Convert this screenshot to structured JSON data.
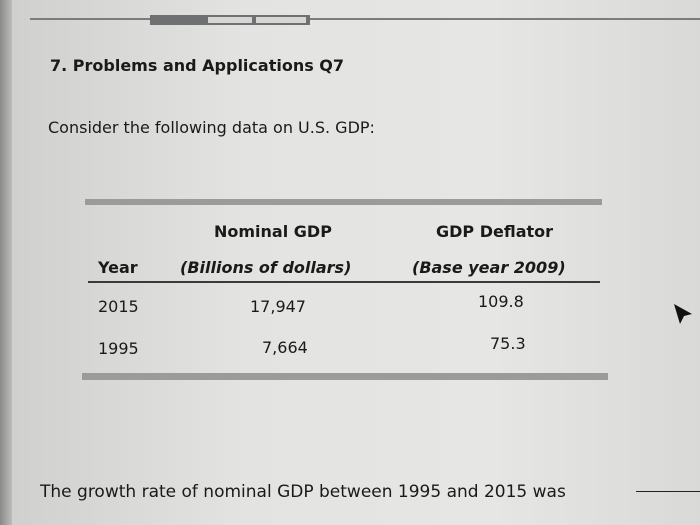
{
  "problem": {
    "title": "7. Problems and Applications Q7",
    "intro": "Consider the following data on U.S. GDP:"
  },
  "table": {
    "headers": {
      "year": "Year",
      "nominal_line1": "Nominal GDP",
      "nominal_line2": "(Billions of dollars)",
      "deflator_line1": "GDP Deflator",
      "deflator_line2": "(Base year 2009)"
    },
    "rows": [
      {
        "year": "2015",
        "nominal": "17,947",
        "deflator": "109.8"
      },
      {
        "year": "1995",
        "nominal": "7,664",
        "deflator": "75.3"
      }
    ]
  },
  "question": {
    "text": "The growth rate of nominal GDP between 1995 and 2015 was"
  },
  "icons": {
    "cursor": "mouse-pointer-icon"
  }
}
